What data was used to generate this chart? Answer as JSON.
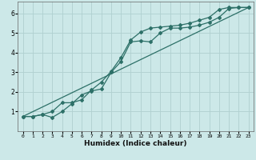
{
  "xlabel": "Humidex (Indice chaleur)",
  "bg_color": "#cce8e8",
  "grid_color": "#b0d0d0",
  "line_color": "#2d7068",
  "xlim": [
    -0.5,
    23.5
  ],
  "ylim": [
    0,
    6.6
  ],
  "xticks": [
    0,
    1,
    2,
    3,
    4,
    5,
    6,
    7,
    8,
    9,
    10,
    11,
    12,
    13,
    14,
    15,
    16,
    17,
    18,
    19,
    20,
    21,
    22,
    23
  ],
  "yticks": [
    1,
    2,
    3,
    4,
    5,
    6
  ],
  "line1_x": [
    0,
    1,
    2,
    3,
    4,
    5,
    6,
    7,
    8,
    9,
    10,
    11,
    12,
    13,
    14,
    15,
    16,
    17,
    18,
    19,
    20,
    21,
    22,
    23
  ],
  "line1_y": [
    0.75,
    0.75,
    0.85,
    0.7,
    1.0,
    1.4,
    1.85,
    2.05,
    2.15,
    3.0,
    3.55,
    4.55,
    4.6,
    4.55,
    5.0,
    5.25,
    5.25,
    5.3,
    5.4,
    5.55,
    5.8,
    6.25,
    6.3,
    6.3
  ],
  "line2_x": [
    0,
    1,
    2,
    3,
    4,
    5,
    6,
    7,
    8,
    9,
    10,
    11,
    12,
    13,
    14,
    15,
    16,
    17,
    18,
    19,
    20,
    21,
    22,
    23
  ],
  "line2_y": [
    0.75,
    0.75,
    0.85,
    1.0,
    1.45,
    1.45,
    1.6,
    2.1,
    2.5,
    3.05,
    3.75,
    4.65,
    5.05,
    5.25,
    5.3,
    5.35,
    5.4,
    5.5,
    5.65,
    5.8,
    6.2,
    6.3,
    6.3,
    6.3
  ],
  "line3_x": [
    0,
    23
  ],
  "line3_y": [
    0.75,
    6.3
  ]
}
